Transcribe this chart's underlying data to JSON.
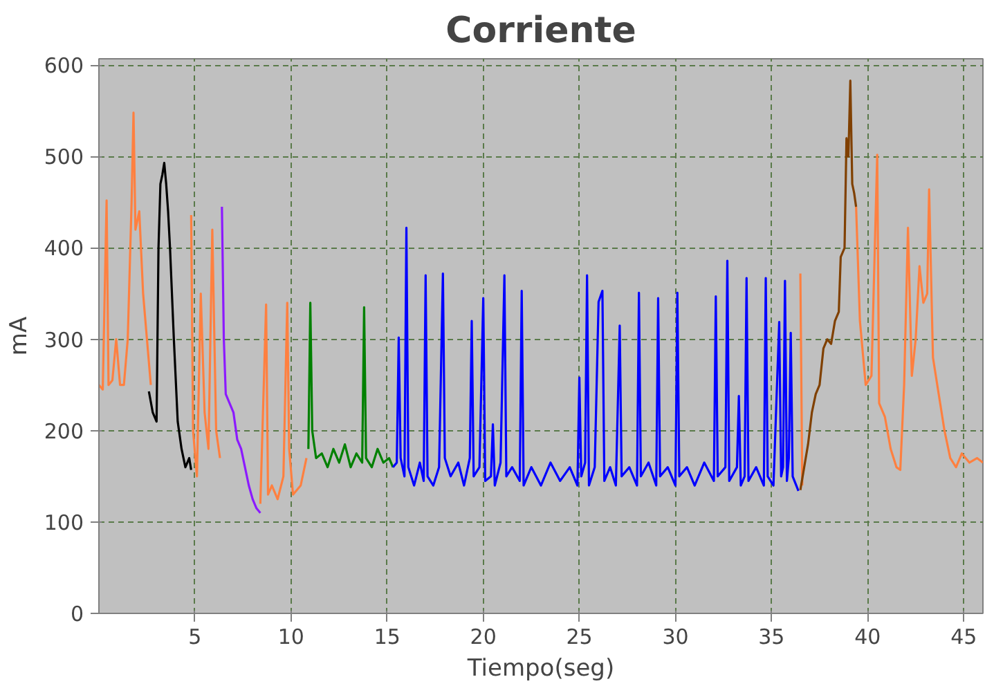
{
  "chart_data": {
    "type": "line",
    "title": "Corriente",
    "xlabel": "Tiempo(seg)",
    "ylabel": "mA",
    "xlim": [
      0,
      46
    ],
    "ylim": [
      0,
      607
    ],
    "xticks": [
      5,
      10,
      15,
      20,
      25,
      30,
      35,
      40,
      45
    ],
    "yticks": [
      0,
      100,
      200,
      300,
      400,
      500,
      600
    ],
    "grid": true,
    "series": [
      {
        "color": "#ff8040",
        "x": [
          0,
          0.2,
          0.4,
          0.5,
          0.7,
          0.9,
          1.1,
          1.3,
          1.5,
          1.7,
          1.8,
          1.9,
          2.1,
          2.3,
          2.5,
          2.7,
          3.5,
          4.8,
          4.9,
          5.1,
          5.3,
          5.5,
          5.7,
          5.9,
          6.1,
          6.3,
          7.5,
          8.4,
          8.7,
          8.8,
          9.0,
          9.3,
          9.6,
          9.8,
          9.9,
          10.1,
          10.5,
          10.8,
          13,
          36.5,
          36.6,
          38,
          39.4,
          39.6,
          39.9,
          40.2,
          40.5,
          40.6,
          40.9,
          41.2,
          41.5,
          41.7,
          41.9,
          42.1,
          42.3,
          42.5,
          42.7,
          42.9,
          43.1,
          43.2,
          43.4,
          43.7,
          44.0,
          44.3,
          44.6,
          44.9,
          45.3,
          45.7,
          46.0
        ],
        "values": [
          250,
          245,
          452,
          250,
          255,
          300,
          250,
          250,
          300,
          450,
          548,
          420,
          440,
          350,
          300,
          250,
          null,
          436,
          200,
          150,
          350,
          220,
          180,
          420,
          200,
          170,
          null,
          120,
          338,
          130,
          140,
          125,
          150,
          340,
          180,
          130,
          140,
          170,
          null,
          372,
          140,
          null,
          445,
          320,
          250,
          260,
          502,
          230,
          215,
          180,
          160,
          157,
          250,
          422,
          260,
          300,
          380,
          340,
          350,
          464,
          280,
          240,
          200,
          170,
          160,
          175,
          165,
          170,
          165
        ]
      },
      {
        "color": "#000000",
        "x": [
          2.6,
          2.8,
          3.0,
          3.1,
          3.2,
          3.3,
          3.4,
          3.5,
          3.6,
          3.7,
          3.9,
          4.1,
          4.3,
          4.5,
          4.7,
          4.8
        ],
        "values": [
          243,
          220,
          210,
          400,
          470,
          480,
          493,
          470,
          440,
          400,
          300,
          210,
          180,
          160,
          170,
          157
        ]
      },
      {
        "color": "#8c1aff",
        "x": [
          6.4,
          6.5,
          6.6,
          6.8,
          7.0,
          7.2,
          7.4,
          7.6,
          7.8,
          8.0,
          8.2,
          8.4
        ],
        "values": [
          445,
          300,
          240,
          230,
          220,
          190,
          180,
          160,
          140,
          125,
          115,
          110
        ]
      },
      {
        "color": "#008000",
        "x": [
          10.9,
          11.0,
          11.1,
          11.3,
          11.6,
          11.9,
          12.2,
          12.5,
          12.8,
          13.1,
          13.4,
          13.7,
          13.8,
          13.9,
          14.2,
          14.5,
          14.8,
          15.1,
          15.3
        ],
        "values": [
          180,
          340,
          200,
          170,
          175,
          160,
          180,
          165,
          185,
          160,
          175,
          165,
          335,
          170,
          160,
          180,
          165,
          170,
          160
        ]
      },
      {
        "color": "#0000ff",
        "x": [
          15.3,
          15.5,
          15.6,
          15.7,
          15.9,
          16.0,
          16.1,
          16.4,
          16.7,
          16.9,
          17.0,
          17.1,
          17.4,
          17.7,
          17.9,
          18.0,
          18.3,
          18.7,
          19.0,
          19.3,
          19.4,
          19.5,
          19.8,
          20.0,
          20.1,
          20.4,
          20.5,
          20.6,
          20.9,
          21.1,
          21.2,
          21.5,
          21.9,
          22.0,
          22.1,
          22.5,
          23.0,
          23.5,
          24.0,
          24.5,
          24.9,
          25.0,
          25.1,
          25.3,
          25.4,
          25.5,
          25.8,
          26.0,
          26.2,
          26.3,
          26.6,
          26.9,
          27.1,
          27.2,
          27.6,
          28.0,
          28.1,
          28.2,
          28.6,
          29.0,
          29.1,
          29.2,
          29.6,
          30.0,
          30.1,
          30.2,
          30.6,
          31.0,
          31.5,
          32.0,
          32.1,
          32.2,
          32.6,
          32.7,
          32.8,
          33.2,
          33.3,
          33.4,
          33.6,
          33.7,
          33.8,
          34.2,
          34.6,
          34.7,
          34.8,
          35.1,
          35.4,
          35.5,
          35.6,
          35.7,
          35.8,
          35.9,
          36.0,
          36.1,
          36.4
        ],
        "values": [
          160,
          165,
          302,
          170,
          150,
          422,
          160,
          140,
          165,
          145,
          370,
          150,
          140,
          160,
          372,
          170,
          150,
          165,
          140,
          170,
          320,
          150,
          160,
          345,
          145,
          150,
          207,
          140,
          165,
          370,
          150,
          160,
          145,
          353,
          140,
          160,
          140,
          165,
          145,
          160,
          140,
          258,
          150,
          165,
          370,
          140,
          160,
          341,
          353,
          145,
          160,
          140,
          315,
          150,
          160,
          140,
          351,
          150,
          165,
          140,
          345,
          150,
          160,
          140,
          351,
          150,
          160,
          140,
          165,
          145,
          347,
          150,
          160,
          386,
          145,
          160,
          238,
          140,
          150,
          367,
          145,
          160,
          140,
          367,
          150,
          140,
          319,
          150,
          160,
          364,
          145,
          170,
          307,
          150,
          134
        ]
      },
      {
        "color": "#804000",
        "x": [
          36.5,
          36.7,
          36.9,
          37.1,
          37.3,
          37.5,
          37.7,
          37.9,
          38.1,
          38.3,
          38.5,
          38.6,
          38.8,
          38.9,
          39.0,
          39.1,
          39.2,
          39.3,
          39.4
        ],
        "values": [
          135,
          160,
          185,
          220,
          240,
          250,
          290,
          300,
          295,
          320,
          330,
          390,
          400,
          520,
          500,
          583,
          470,
          460,
          445
        ]
      }
    ]
  }
}
